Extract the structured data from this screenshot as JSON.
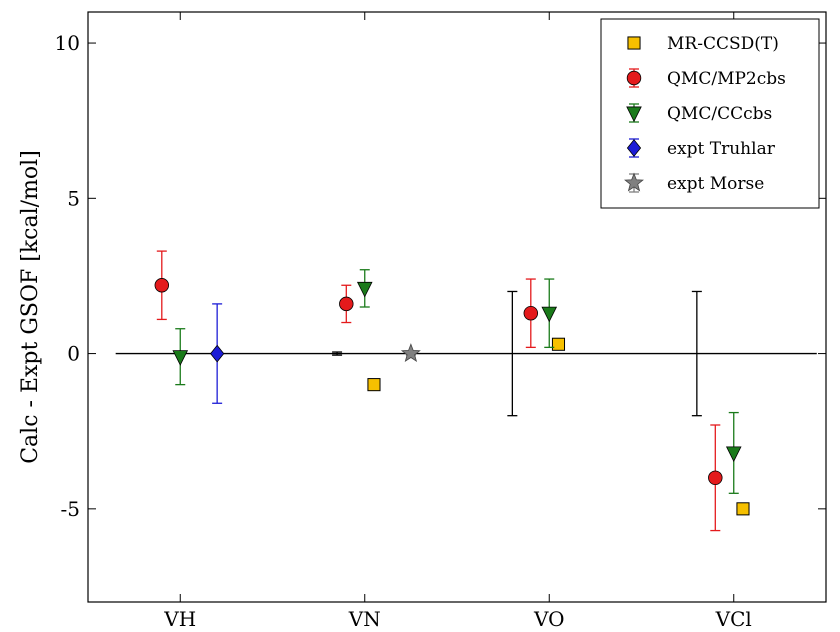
{
  "chart_data": {
    "type": "scatter",
    "ylabel": "Calc - Expt GSOF [kcal/mol]",
    "categories": [
      "VH",
      "VN",
      "VO",
      "VCl"
    ],
    "x_positions": [
      1,
      2,
      3,
      4
    ],
    "xlim": [
      0.5,
      4.5
    ],
    "ylim": [
      -8,
      11
    ],
    "yticks": [
      10,
      5,
      0,
      -5
    ],
    "ytick_labels": [
      "10",
      "5",
      "0",
      "-5"
    ],
    "zero_line": true,
    "legend_position": "top-right",
    "series": [
      {
        "name": "MR-CCSD(T)",
        "marker": "square",
        "color": "#f6c000",
        "points": [
          {
            "x": 2.05,
            "y": -1.0,
            "yerr": null
          },
          {
            "x": 3.05,
            "y": 0.3,
            "yerr": null
          },
          {
            "x": 4.05,
            "y": -5.0,
            "yerr": null
          }
        ]
      },
      {
        "name": "QMC/MP2cbs",
        "marker": "circle",
        "color": "#e41a1c",
        "points": [
          {
            "x": 0.9,
            "y": 2.2,
            "yerr": 1.1
          },
          {
            "x": 1.9,
            "y": 1.6,
            "yerr": 0.6
          },
          {
            "x": 2.9,
            "y": 1.3,
            "yerr": 1.1
          },
          {
            "x": 3.9,
            "y": -4.0,
            "yerr": 1.7
          }
        ]
      },
      {
        "name": "QMC/CCcbs",
        "marker": "triangle-down",
        "color": "#1a7a1a",
        "points": [
          {
            "x": 1.0,
            "y": -0.1,
            "yerr": 0.9
          },
          {
            "x": 2.0,
            "y": 2.1,
            "yerr": 0.6
          },
          {
            "x": 3.0,
            "y": 1.3,
            "yerr": 1.1
          },
          {
            "x": 4.0,
            "y": -3.2,
            "yerr": 1.3
          }
        ]
      },
      {
        "name": "expt Truhlar",
        "marker": "diamond",
        "color": "#1c1cd6",
        "points": [
          {
            "x": 1.2,
            "y": 0.0,
            "yerr": 1.6
          }
        ]
      },
      {
        "name": "expt Morse",
        "marker": "star",
        "color": "#808080",
        "points": [
          {
            "x": 2.25,
            "y": 0.0,
            "yerr": 0.05
          }
        ]
      },
      {
        "name": "",
        "marker": "none",
        "color": "#000000",
        "points": [
          {
            "x": 1.85,
            "y": 0.0,
            "yerr": 0.05
          },
          {
            "x": 2.8,
            "y": 0.0,
            "yerr": 2.0
          },
          {
            "x": 3.8,
            "y": 0.0,
            "yerr": 2.0
          }
        ]
      }
    ]
  }
}
